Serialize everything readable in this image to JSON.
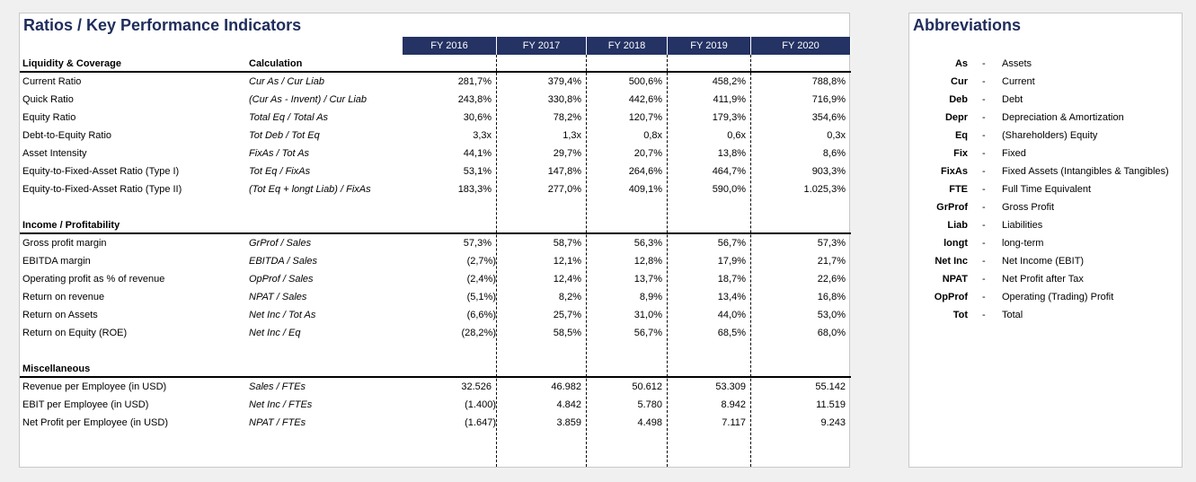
{
  "title": "Ratios / Key Performance Indicators",
  "years": [
    "FY 2016",
    "FY 2017",
    "FY 2018",
    "FY 2019",
    "FY 2020"
  ],
  "calc_header": "Calculation",
  "sections": [
    {
      "name": "Liquidity & Coverage",
      "rows": [
        {
          "label": "Current Ratio",
          "calc": "Cur As / Cur Liab",
          "values": [
            "281,7%",
            "379,4%",
            "500,6%",
            "458,2%",
            "788,8%"
          ]
        },
        {
          "label": "Quick Ratio",
          "calc": "(Cur As - Invent) / Cur Liab",
          "values": [
            "243,8%",
            "330,8%",
            "442,6%",
            "411,9%",
            "716,9%"
          ]
        },
        {
          "label": "Equity Ratio",
          "calc": "Total Eq / Total As",
          "values": [
            "30,6%",
            "78,2%",
            "120,7%",
            "179,3%",
            "354,6%"
          ]
        },
        {
          "label": "Debt-to-Equity Ratio",
          "calc": "Tot Deb / Tot Eq",
          "values": [
            "3,3x",
            "1,3x",
            "0,8x",
            "0,6x",
            "0,3x"
          ]
        },
        {
          "label": "Asset Intensity",
          "calc": "FixAs / Tot As",
          "values": [
            "44,1%",
            "29,7%",
            "20,7%",
            "13,8%",
            "8,6%"
          ]
        },
        {
          "label": "Equity-to-Fixed-Asset Ratio (Type I)",
          "calc": "Tot Eq / FixAs",
          "values": [
            "53,1%",
            "147,8%",
            "264,6%",
            "464,7%",
            "903,3%"
          ]
        },
        {
          "label": "Equity-to-Fixed-Asset Ratio (Type II)",
          "calc": "(Tot Eq + longt Liab) / FixAs",
          "values": [
            "183,3%",
            "277,0%",
            "409,1%",
            "590,0%",
            "1.025,3%"
          ]
        }
      ]
    },
    {
      "name": "Income / Profitability",
      "rows": [
        {
          "label": "Gross profit margin",
          "calc": "GrProf / Sales",
          "values": [
            "57,3%",
            "58,7%",
            "56,3%",
            "56,7%",
            "57,3%"
          ]
        },
        {
          "label": "EBITDA margin",
          "calc": "EBITDA / Sales",
          "values": [
            "(2,7%)",
            "12,1%",
            "12,8%",
            "17,9%",
            "21,7%"
          ]
        },
        {
          "label": "Operating profit as % of revenue",
          "calc": "OpProf / Sales",
          "values": [
            "(2,4%)",
            "12,4%",
            "13,7%",
            "18,7%",
            "22,6%"
          ]
        },
        {
          "label": "Return on revenue",
          "calc": "NPAT / Sales",
          "values": [
            "(5,1%)",
            "8,2%",
            "8,9%",
            "13,4%",
            "16,8%"
          ]
        },
        {
          "label": "Return on Assets",
          "calc": "Net Inc / Tot As",
          "values": [
            "(6,6%)",
            "25,7%",
            "31,0%",
            "44,0%",
            "53,0%"
          ]
        },
        {
          "label": "Return on Equity (ROE)",
          "calc": "Net Inc / Eq",
          "values": [
            "(28,2%)",
            "58,5%",
            "56,7%",
            "68,5%",
            "68,0%"
          ]
        }
      ]
    },
    {
      "name": "Miscellaneous",
      "rows": [
        {
          "label": "Revenue per Employee (in USD)",
          "calc": "Sales / FTEs",
          "values": [
            "32.526",
            "46.982",
            "50.612",
            "53.309",
            "55.142"
          ]
        },
        {
          "label": "EBIT per Employee (in USD)",
          "calc": "Net Inc / FTEs",
          "values": [
            "(1.400)",
            "4.842",
            "5.780",
            "8.942",
            "11.519"
          ]
        },
        {
          "label": "Net Profit per Employee (in USD)",
          "calc": "NPAT / FTEs",
          "values": [
            "(1.647)",
            "3.859",
            "4.498",
            "7.117",
            "9.243"
          ]
        }
      ]
    }
  ],
  "abbreviations": {
    "title": "Abbreviations",
    "separator": "-",
    "items": [
      {
        "abbr": "As",
        "full": "Assets"
      },
      {
        "abbr": "Cur",
        "full": "Current"
      },
      {
        "abbr": "Deb",
        "full": "Debt"
      },
      {
        "abbr": "Depr",
        "full": "Depreciation & Amortization"
      },
      {
        "abbr": "Eq",
        "full": "(Shareholders) Equity"
      },
      {
        "abbr": "Fix",
        "full": "Fixed"
      },
      {
        "abbr": "FixAs",
        "full": "Fixed Assets (Intangibles & Tangibles)"
      },
      {
        "abbr": "FTE",
        "full": "Full Time Equivalent"
      },
      {
        "abbr": "GrProf",
        "full": "Gross Profit"
      },
      {
        "abbr": "Liab",
        "full": "Liabilities"
      },
      {
        "abbr": "longt",
        "full": "long-term"
      },
      {
        "abbr": "Net Inc",
        "full": "Net Income (EBIT)"
      },
      {
        "abbr": "NPAT",
        "full": "Net Profit after Tax"
      },
      {
        "abbr": "OpProf",
        "full": "Operating (Trading) Profit"
      },
      {
        "abbr": "Tot",
        "full": "Total"
      }
    ]
  },
  "colors": {
    "header_bg": "#243264",
    "title": "#1f2d5c"
  }
}
